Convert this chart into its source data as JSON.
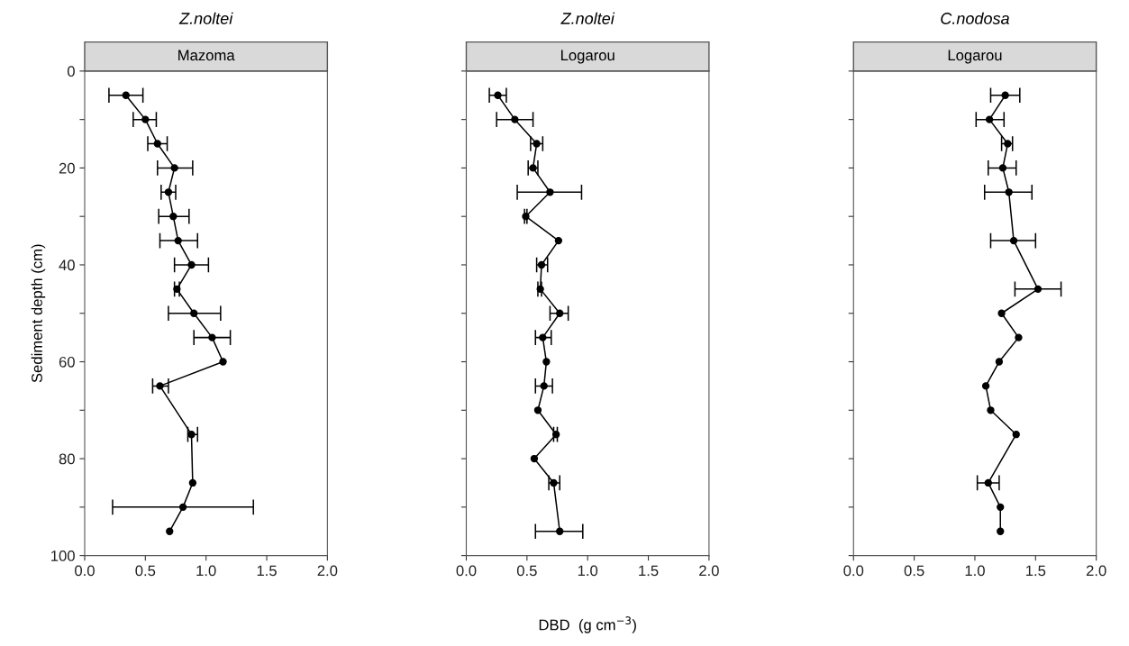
{
  "chart_data": [
    {
      "type": "line",
      "orientation": "horizontal",
      "title": "Z.noltei",
      "subtitle": "Mazoma",
      "ylabel": "Sediment depth (cm)",
      "marker": "circle",
      "line_style": "solid",
      "grid": false,
      "xlim": [
        0,
        2
      ],
      "xticks": [
        {
          "value": 0,
          "label": "0.0"
        },
        {
          "value": 0.5,
          "label": "0.5"
        },
        {
          "value": 1,
          "label": "1.0"
        },
        {
          "value": 1.5,
          "label": "1.5"
        },
        {
          "value": 2,
          "label": "2.0"
        }
      ],
      "ylim": [
        100,
        0
      ],
      "yticks": [
        0,
        {
          "value": 10,
          "label": null
        },
        20,
        {
          "value": 30,
          "label": null
        },
        40,
        {
          "value": 50,
          "label": null
        },
        60,
        {
          "value": 70,
          "label": null
        },
        80,
        {
          "value": 90,
          "label": null
        },
        100
      ],
      "series": [
        {
          "color": "#000000",
          "x": [
            5,
            10,
            15,
            20,
            25,
            30,
            35,
            40,
            45,
            50,
            55,
            60,
            65,
            75,
            85,
            90,
            95
          ],
          "values": [
            0.34,
            0.5,
            0.6,
            0.74,
            0.69,
            0.73,
            0.77,
            0.88,
            0.76,
            0.9,
            1.05,
            1.14,
            0.62,
            0.88,
            0.89,
            0.81,
            0.7
          ],
          "errors": [
            [
              0.2,
              0.48
            ],
            [
              0.4,
              0.59
            ],
            [
              0.52,
              0.68
            ],
            [
              0.6,
              0.89
            ],
            [
              0.63,
              0.75
            ],
            [
              0.61,
              0.86
            ],
            [
              0.62,
              0.93
            ],
            [
              0.74,
              1.02
            ],
            [
              0.74,
              0.78
            ],
            [
              0.69,
              1.12
            ],
            [
              0.9,
              1.2
            ],
            null,
            [
              0.56,
              0.69
            ],
            [
              0.85,
              0.93
            ],
            null,
            [
              0.23,
              1.39
            ],
            null
          ]
        }
      ]
    },
    {
      "type": "line",
      "orientation": "horizontal",
      "title": "Z.noltei",
      "subtitle": "Logarou",
      "xlabel": "DBD  (g cm$^{−3}$)",
      "marker": "circle",
      "line_style": "solid",
      "grid": false,
      "tick_labels": "x",
      "xlim": [
        0,
        2
      ],
      "xticks": [
        {
          "value": 0,
          "label": "0.0"
        },
        {
          "value": 0.5,
          "label": "0.5"
        },
        {
          "value": 1,
          "label": "1.0"
        },
        {
          "value": 1.5,
          "label": "1.5"
        },
        {
          "value": 2,
          "label": "2.0"
        }
      ],
      "ylim": [
        100,
        0
      ],
      "yticks": [
        {
          "value": 0,
          "label": null
        },
        {
          "value": 10,
          "label": null
        },
        {
          "value": 20,
          "label": null
        },
        {
          "value": 30,
          "label": null
        },
        {
          "value": 40,
          "label": null
        },
        {
          "value": 50,
          "label": null
        },
        {
          "value": 60,
          "label": null
        },
        {
          "value": 70,
          "label": null
        },
        {
          "value": 80,
          "label": null
        },
        {
          "value": 90,
          "label": null
        },
        {
          "value": 100,
          "label": null
        }
      ],
      "series": [
        {
          "color": "#000000",
          "x": [
            5,
            10,
            15,
            20,
            25,
            30,
            35,
            40,
            45,
            50,
            55,
            60,
            65,
            70,
            75,
            80,
            85,
            95
          ],
          "values": [
            0.26,
            0.4,
            0.58,
            0.55,
            0.69,
            0.49,
            0.76,
            0.62,
            0.61,
            0.77,
            0.63,
            0.66,
            0.64,
            0.59,
            0.74,
            0.56,
            0.72,
            0.77
          ],
          "errors": [
            [
              0.19,
              0.33
            ],
            [
              0.25,
              0.55
            ],
            [
              0.53,
              0.63
            ],
            [
              0.51,
              0.59
            ],
            [
              0.42,
              0.95
            ],
            [
              0.48,
              0.5
            ],
            null,
            [
              0.58,
              0.67
            ],
            [
              0.59,
              0.62
            ],
            [
              0.69,
              0.84
            ],
            [
              0.57,
              0.7
            ],
            null,
            [
              0.57,
              0.71
            ],
            null,
            [
              0.72,
              0.75
            ],
            null,
            [
              0.68,
              0.77
            ],
            [
              0.57,
              0.96
            ]
          ]
        }
      ]
    },
    {
      "type": "line",
      "orientation": "horizontal",
      "title": "C.nodosa",
      "subtitle": "Logarou",
      "marker": "circle",
      "line_style": "solid",
      "grid": false,
      "tick_labels": "x",
      "xlim": [
        0,
        2
      ],
      "xticks": [
        {
          "value": 0,
          "label": "0.0"
        },
        {
          "value": 0.5,
          "label": "0.5"
        },
        {
          "value": 1,
          "label": "1.0"
        },
        {
          "value": 1.5,
          "label": "1.5"
        },
        {
          "value": 2,
          "label": "2.0"
        }
      ],
      "ylim": [
        100,
        0
      ],
      "yticks": [
        {
          "value": 0,
          "label": null
        },
        {
          "value": 10,
          "label": null
        },
        {
          "value": 20,
          "label": null
        },
        {
          "value": 30,
          "label": null
        },
        {
          "value": 40,
          "label": null
        },
        {
          "value": 50,
          "label": null
        },
        {
          "value": 60,
          "label": null
        },
        {
          "value": 70,
          "label": null
        },
        {
          "value": 80,
          "label": null
        },
        {
          "value": 90,
          "label": null
        },
        {
          "value": 100,
          "label": null
        }
      ],
      "series": [
        {
          "color": "#000000",
          "x": [
            5,
            10,
            15,
            20,
            25,
            35,
            45,
            50,
            55,
            60,
            65,
            70,
            75,
            85,
            90,
            95
          ],
          "values": [
            1.25,
            1.12,
            1.27,
            1.23,
            1.28,
            1.32,
            1.52,
            1.22,
            1.36,
            1.2,
            1.09,
            1.13,
            1.34,
            1.11,
            1.21,
            1.21
          ],
          "errors": [
            [
              1.13,
              1.37
            ],
            [
              1.01,
              1.24
            ],
            [
              1.22,
              1.31
            ],
            [
              1.11,
              1.34
            ],
            [
              1.08,
              1.47
            ],
            [
              1.13,
              1.5
            ],
            [
              1.33,
              1.71
            ],
            null,
            null,
            null,
            null,
            null,
            null,
            [
              1.02,
              1.2
            ],
            null,
            null
          ]
        }
      ]
    }
  ]
}
